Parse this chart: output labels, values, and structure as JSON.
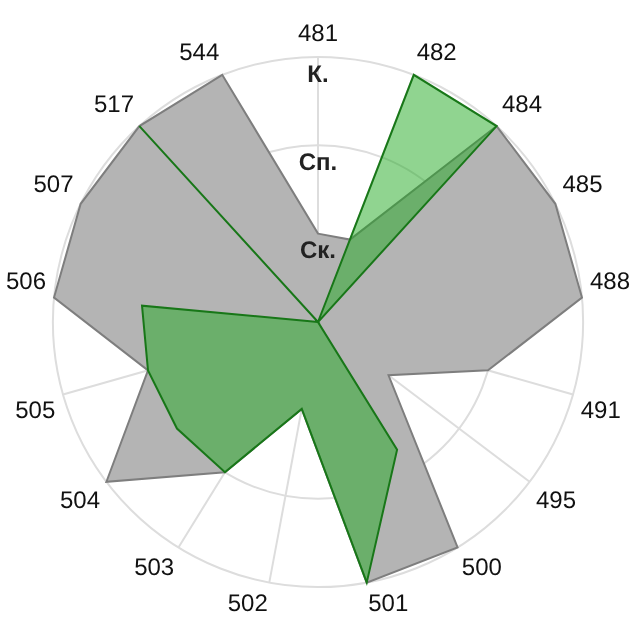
{
  "chart_data": {
    "type": "radar",
    "categories": [
      "481",
      "482",
      "484",
      "485",
      "488",
      "491",
      "495",
      "500",
      "501",
      "502",
      "503",
      "504",
      "505",
      "506",
      "507",
      "517",
      "544"
    ],
    "series": [
      {
        "color": "#b4b4b4",
        "values": [
          1,
          1,
          3,
          3,
          3,
          2,
          1,
          3,
          3,
          1,
          2,
          3,
          2,
          3,
          3,
          3,
          3
        ]
      },
      {
        "color": "#22aa22",
        "values": [
          0,
          3,
          3,
          0,
          0,
          0,
          0,
          1.7,
          3,
          1,
          2,
          2,
          2,
          2,
          0,
          3,
          0
        ]
      }
    ],
    "ylim": [
      0,
      3
    ],
    "yticks": [
      {
        "value": 1,
        "label": "Ск."
      },
      {
        "value": 2,
        "label": "Сп."
      },
      {
        "value": 3,
        "label": "К."
      }
    ],
    "grid": true,
    "legend": false
  }
}
